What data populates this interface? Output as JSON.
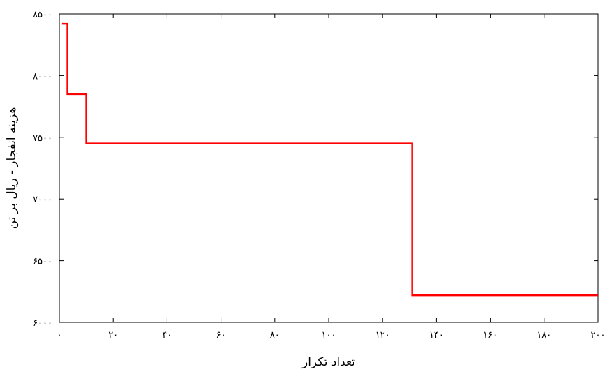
{
  "chart_data": {
    "type": "line",
    "title": "",
    "xlabel": "تعداد تکرار",
    "ylabel": "هزینه انفجار - ریال بر تن",
    "xlim": [
      0,
      200
    ],
    "ylim": [
      6000,
      8500
    ],
    "x_ticks": [
      0,
      20,
      40,
      60,
      80,
      100,
      120,
      140,
      160,
      180,
      200
    ],
    "x_tick_labels": [
      "۰",
      "۲۰",
      "۴۰",
      "۶۰",
      "۸۰",
      "۱۰۰",
      "۱۲۰",
      "۱۴۰",
      "۱۶۰",
      "۱۸۰",
      "۲۰۰"
    ],
    "y_ticks": [
      6000,
      6500,
      7000,
      7500,
      8000,
      8500
    ],
    "y_tick_labels": [
      "۶۰۰۰",
      "۶۵۰۰",
      "۷۰۰۰",
      "۷۵۰۰",
      "۸۰۰۰",
      "۸۵۰۰"
    ],
    "grid": false,
    "series": [
      {
        "color": "#ff0000",
        "step": true,
        "x": [
          1,
          3,
          10,
          131,
          200
        ],
        "y": [
          8420,
          7850,
          7450,
          6220,
          6220
        ]
      }
    ]
  }
}
